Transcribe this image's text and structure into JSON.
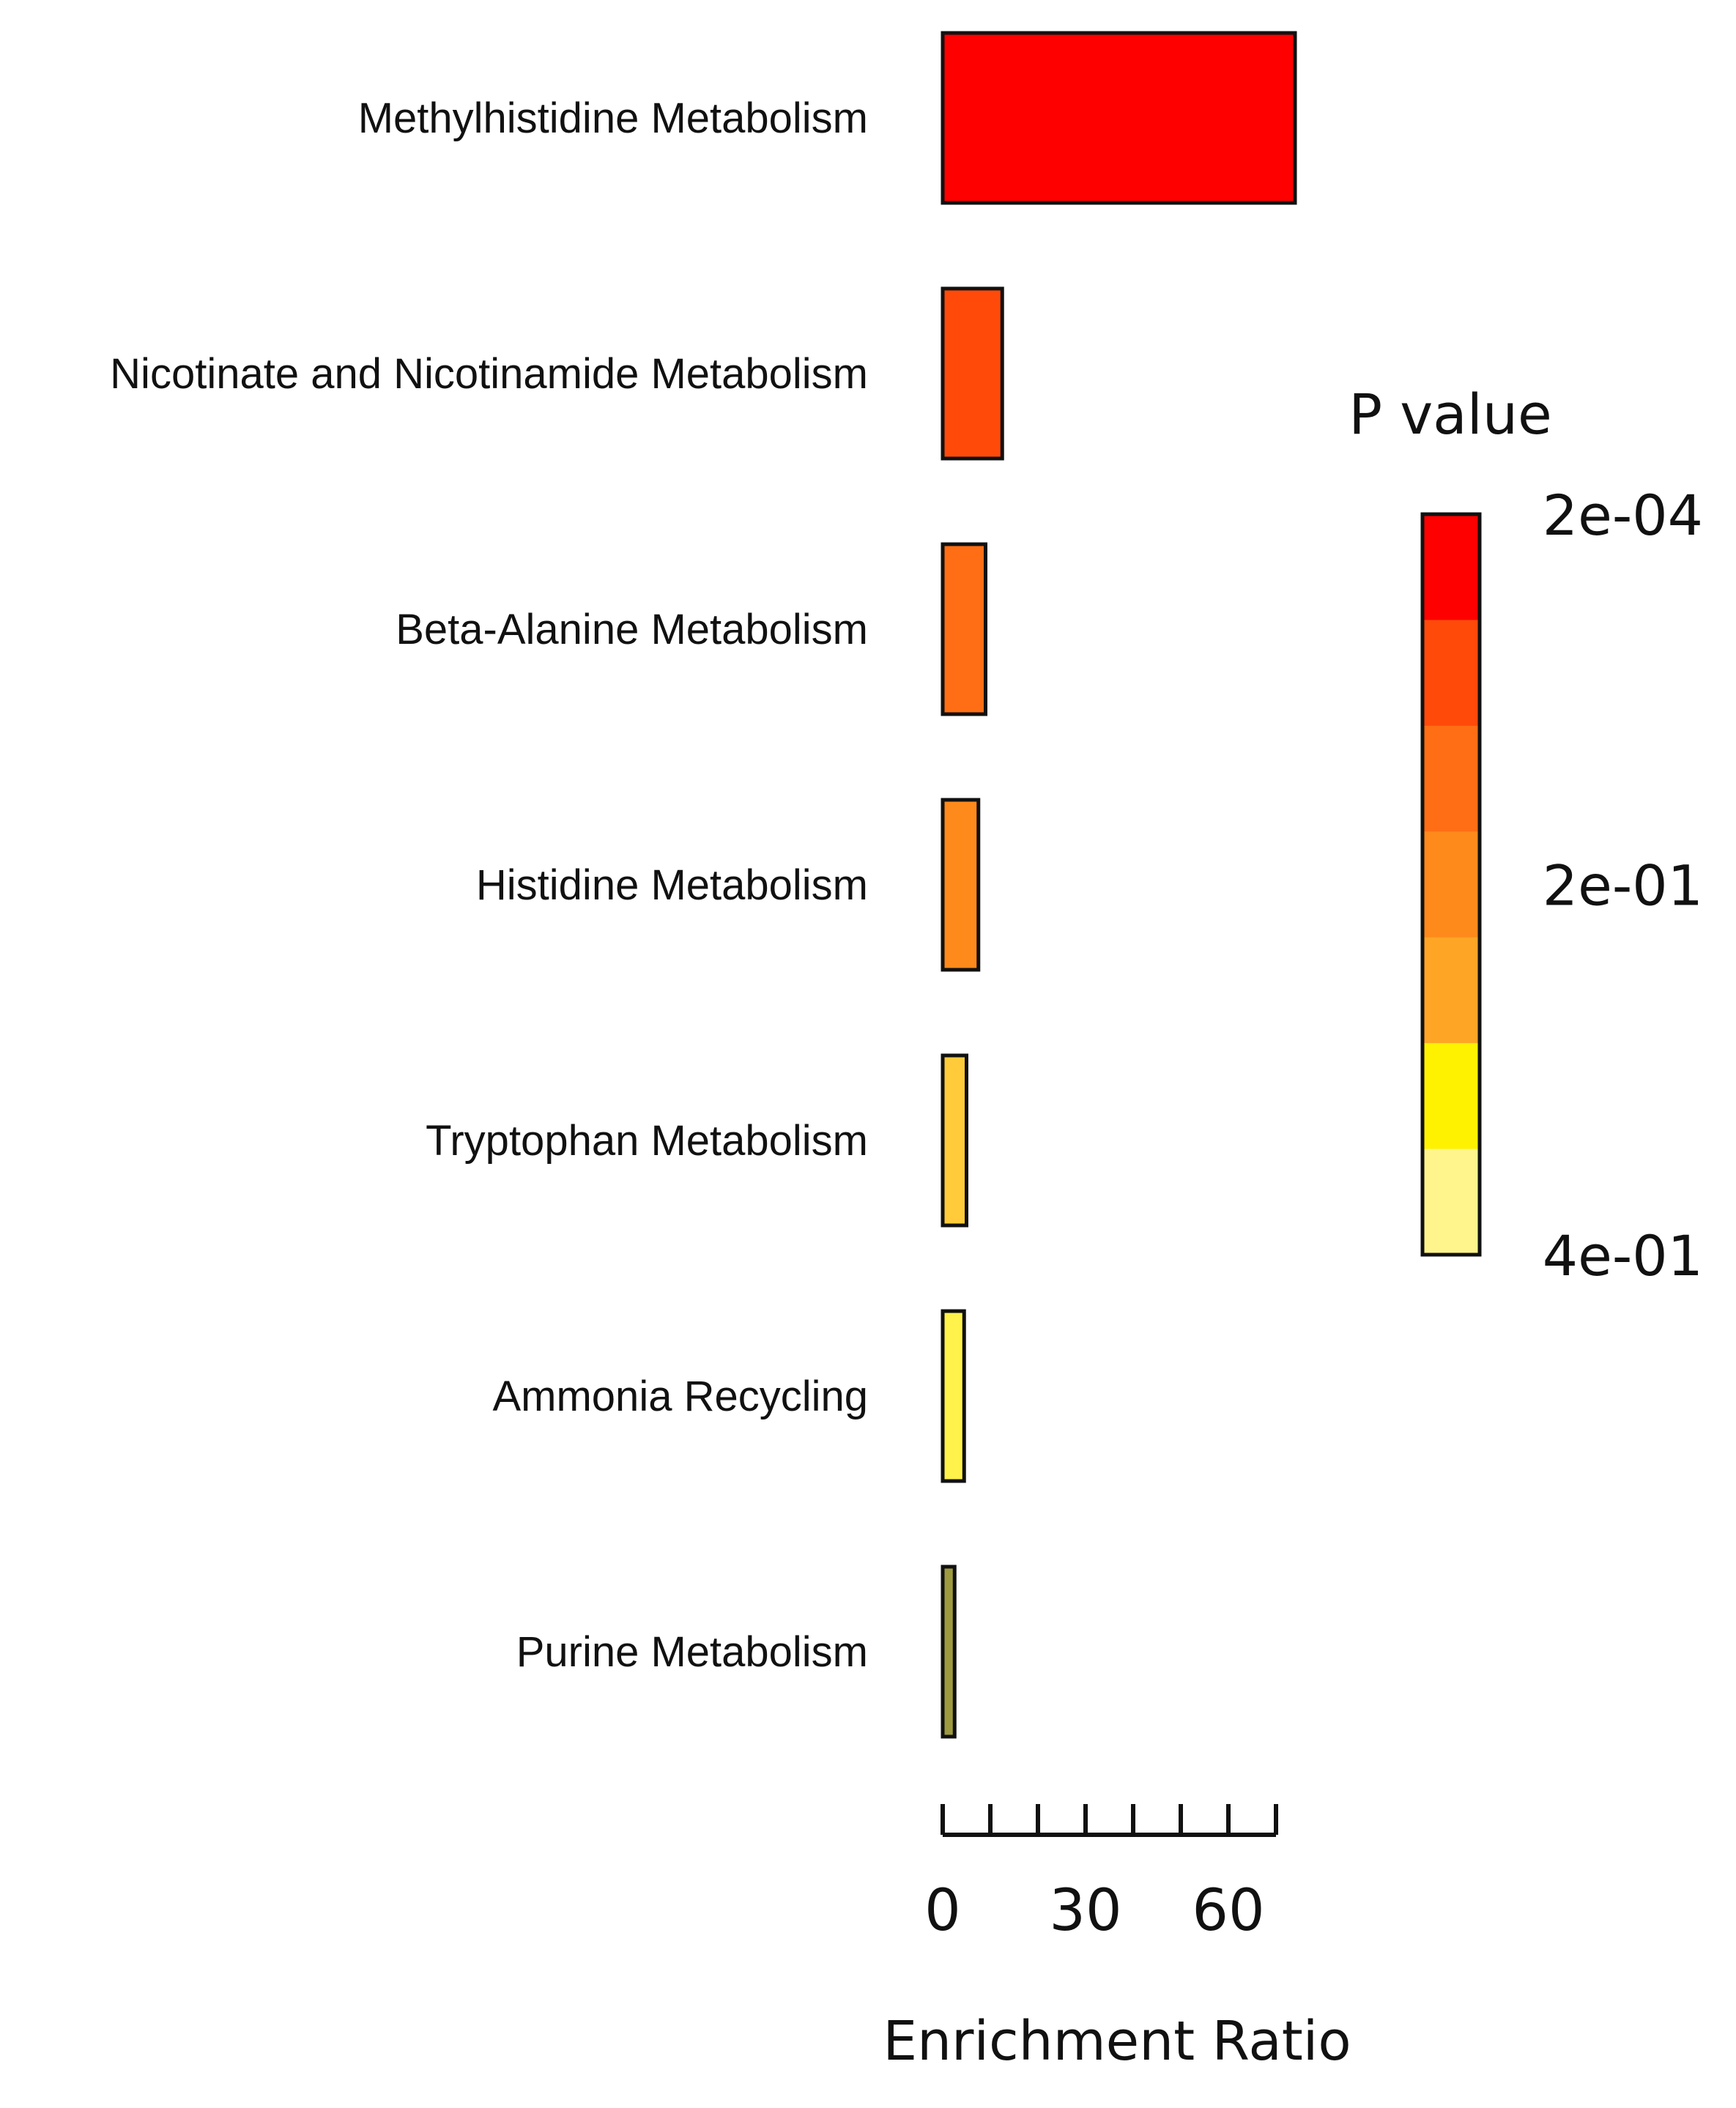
{
  "chart_data": {
    "type": "bar",
    "orientation": "horizontal",
    "categories": [
      "Methylhistidine Metabolism",
      "Nicotinate and Nicotinamide Metabolism",
      "Beta-Alanine Metabolism",
      "Histidine Metabolism",
      "Tryptophan Metabolism",
      "Ammonia Recycling",
      "Purine Metabolism"
    ],
    "values": [
      74,
      12.5,
      9,
      7.5,
      5,
      4.5,
      2.5
    ],
    "bar_colors": [
      "#FF0000",
      "#FF4A0A",
      "#FF6E14",
      "#FF8A1C",
      "#FFCB3A",
      "#FFF24A",
      "#9E9A40"
    ],
    "xlabel": "Enrichment Ratio",
    "ylabel": "",
    "xlim": [
      0,
      70
    ],
    "x_ticks": [
      0,
      10,
      20,
      30,
      40,
      50,
      60,
      70
    ],
    "x_tick_labels": [
      {
        "value": 0,
        "label": "0"
      },
      {
        "value": 30,
        "label": "30"
      },
      {
        "value": 60,
        "label": "60"
      }
    ],
    "legend": {
      "title": "P value",
      "placement": "right",
      "colors": [
        "#FF0000",
        "#FF4A0A",
        "#FF6E14",
        "#FF8A1C",
        "#FFA526",
        "#FFF200",
        "#FFF58C"
      ],
      "labels": [
        "2e-04",
        "2e-01",
        "4e-01"
      ]
    },
    "grid": false
  }
}
